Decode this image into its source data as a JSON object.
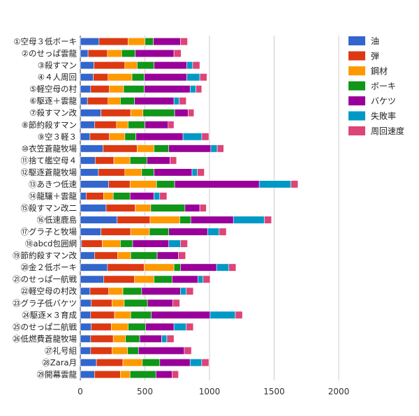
{
  "chart_data": {
    "type": "bar",
    "orientation": "horizontal",
    "stacked": true,
    "title": "",
    "xlabel": "",
    "ylabel": "",
    "xlim": [
      0,
      2000
    ],
    "x_ticks": [
      "0",
      "500",
      "1000",
      "1500",
      "2000"
    ],
    "grid": true,
    "legend_position": "right",
    "categories": [
      "①空母３低ボーキ",
      "②のせっぱ雲龍",
      "③殺すマン",
      "④４人周回",
      "⑤軽空母の村",
      "⑥駆逐＋雲龍",
      "⑦殺すマン改",
      "⑧節約殺すマン",
      "⑨空３軽３",
      "⑩衣笠蒼龍牧場",
      "⑪捨て艦空母４",
      "⑫駆逐蒼龍牧場",
      "⑬あきつ低速",
      "⑭龍驤＋雲龍",
      "⑮殺すマン改二",
      "⑯低速鹿島",
      "⑰グラ子と牧場",
      "⑱abcd包囲網",
      "⑲節約殺すマン改",
      "⑳金２低ボーキ",
      "㉑のせっぱ一航戦",
      "㉒軽空母の村改",
      "㉓グラ子低バケツ",
      "㉔駆逐×３育成",
      "㉕のせっぱ二航戦",
      "㉖低燃費蒼龍牧場",
      "㉗礼号組",
      "㉘Zara月",
      "㉙開幕雲龍"
    ],
    "series": [
      {
        "name": "油",
        "color": "#3366cc",
        "values": [
          145,
          60,
          105,
          100,
          80,
          55,
          160,
          110,
          75,
          175,
          115,
          140,
          220,
          45,
          200,
          285,
          160,
          10,
          110,
          210,
          180,
          75,
          85,
          80,
          85,
          80,
          80,
          125,
          110
        ]
      },
      {
        "name": "弾",
        "color": "#dc3912",
        "values": [
          225,
          150,
          240,
          115,
          145,
          160,
          230,
          170,
          150,
          265,
          145,
          205,
          165,
          135,
          225,
          255,
          230,
          160,
          180,
          285,
          240,
          145,
          160,
          185,
          155,
          175,
          165,
          205,
          200
        ]
      },
      {
        "name": "鋼材",
        "color": "#ff9900",
        "values": [
          130,
          110,
          95,
          185,
          110,
          95,
          95,
          90,
          120,
          130,
          125,
          130,
          205,
          75,
          120,
          230,
          145,
          140,
          100,
          230,
          150,
          110,
          95,
          125,
          130,
          95,
          120,
          150,
          75
        ]
      },
      {
        "name": "ボーキ",
        "color": "#109618",
        "values": [
          65,
          105,
          130,
          95,
          160,
          110,
          245,
          130,
          85,
          115,
          130,
          95,
          140,
          130,
          265,
          85,
          150,
          95,
          205,
          50,
          140,
          145,
          180,
          160,
          135,
          110,
          85,
          135,
          200
        ]
      },
      {
        "name": "バケツ",
        "color": "#990099",
        "values": [
          210,
          300,
          255,
          330,
          355,
          305,
          105,
          180,
          365,
          325,
          180,
          295,
          655,
          185,
          115,
          330,
          300,
          280,
          165,
          280,
          200,
          300,
          195,
          455,
          220,
          170,
          355,
          235,
          125
        ]
      },
      {
        "name": "失敗率",
        "color": "#0099c6",
        "values": [
          0,
          0,
          45,
          100,
          45,
          40,
          0,
          0,
          145,
          50,
          0,
          40,
          245,
          45,
          0,
          240,
          90,
          90,
          0,
          95,
          40,
          45,
          0,
          195,
          95,
          40,
          0,
          90,
          0
        ]
      },
      {
        "name": "周回速度",
        "color": "#dd4477",
        "values": [
          55,
          55,
          55,
          55,
          45,
          55,
          45,
          45,
          55,
          50,
          50,
          55,
          55,
          55,
          50,
          55,
          55,
          55,
          55,
          55,
          55,
          55,
          55,
          55,
          55,
          55,
          55,
          55,
          50
        ]
      }
    ]
  }
}
